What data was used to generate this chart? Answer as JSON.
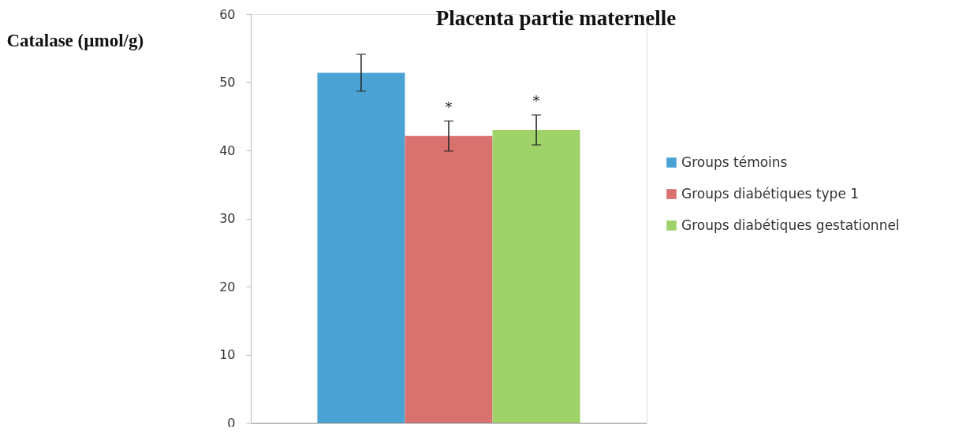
{
  "chart_data": {
    "type": "bar",
    "title": "Placenta partie maternelle",
    "ylabel": "Catalase (µmol/g)",
    "categories": [
      null,
      null,
      null
    ],
    "series": [
      {
        "name": "Groups témoins",
        "color": "#4aa3d3",
        "values": [
          51.4,
          null,
          null
        ],
        "errors": [
          2.7,
          null,
          null
        ],
        "value_labels": [
          null,
          null,
          null
        ]
      },
      {
        "name": "Groups diabétiques type 1",
        "color": "#d9716f",
        "values": [
          null,
          42.1,
          null
        ],
        "errors": [
          null,
          2.2,
          null
        ],
        "value_labels": [
          null,
          "*",
          null
        ]
      },
      {
        "name": "Groups diabétiques gestationnel",
        "color": "#9fd36a",
        "values": [
          null,
          null,
          43.0
        ],
        "errors": [
          null,
          null,
          2.2
        ],
        "value_labels": [
          null,
          null,
          "*"
        ]
      }
    ],
    "ylim": [
      0,
      60
    ],
    "yticks": [
      0,
      10,
      20,
      30,
      40,
      50,
      60
    ],
    "grid": false,
    "legend": "right"
  }
}
